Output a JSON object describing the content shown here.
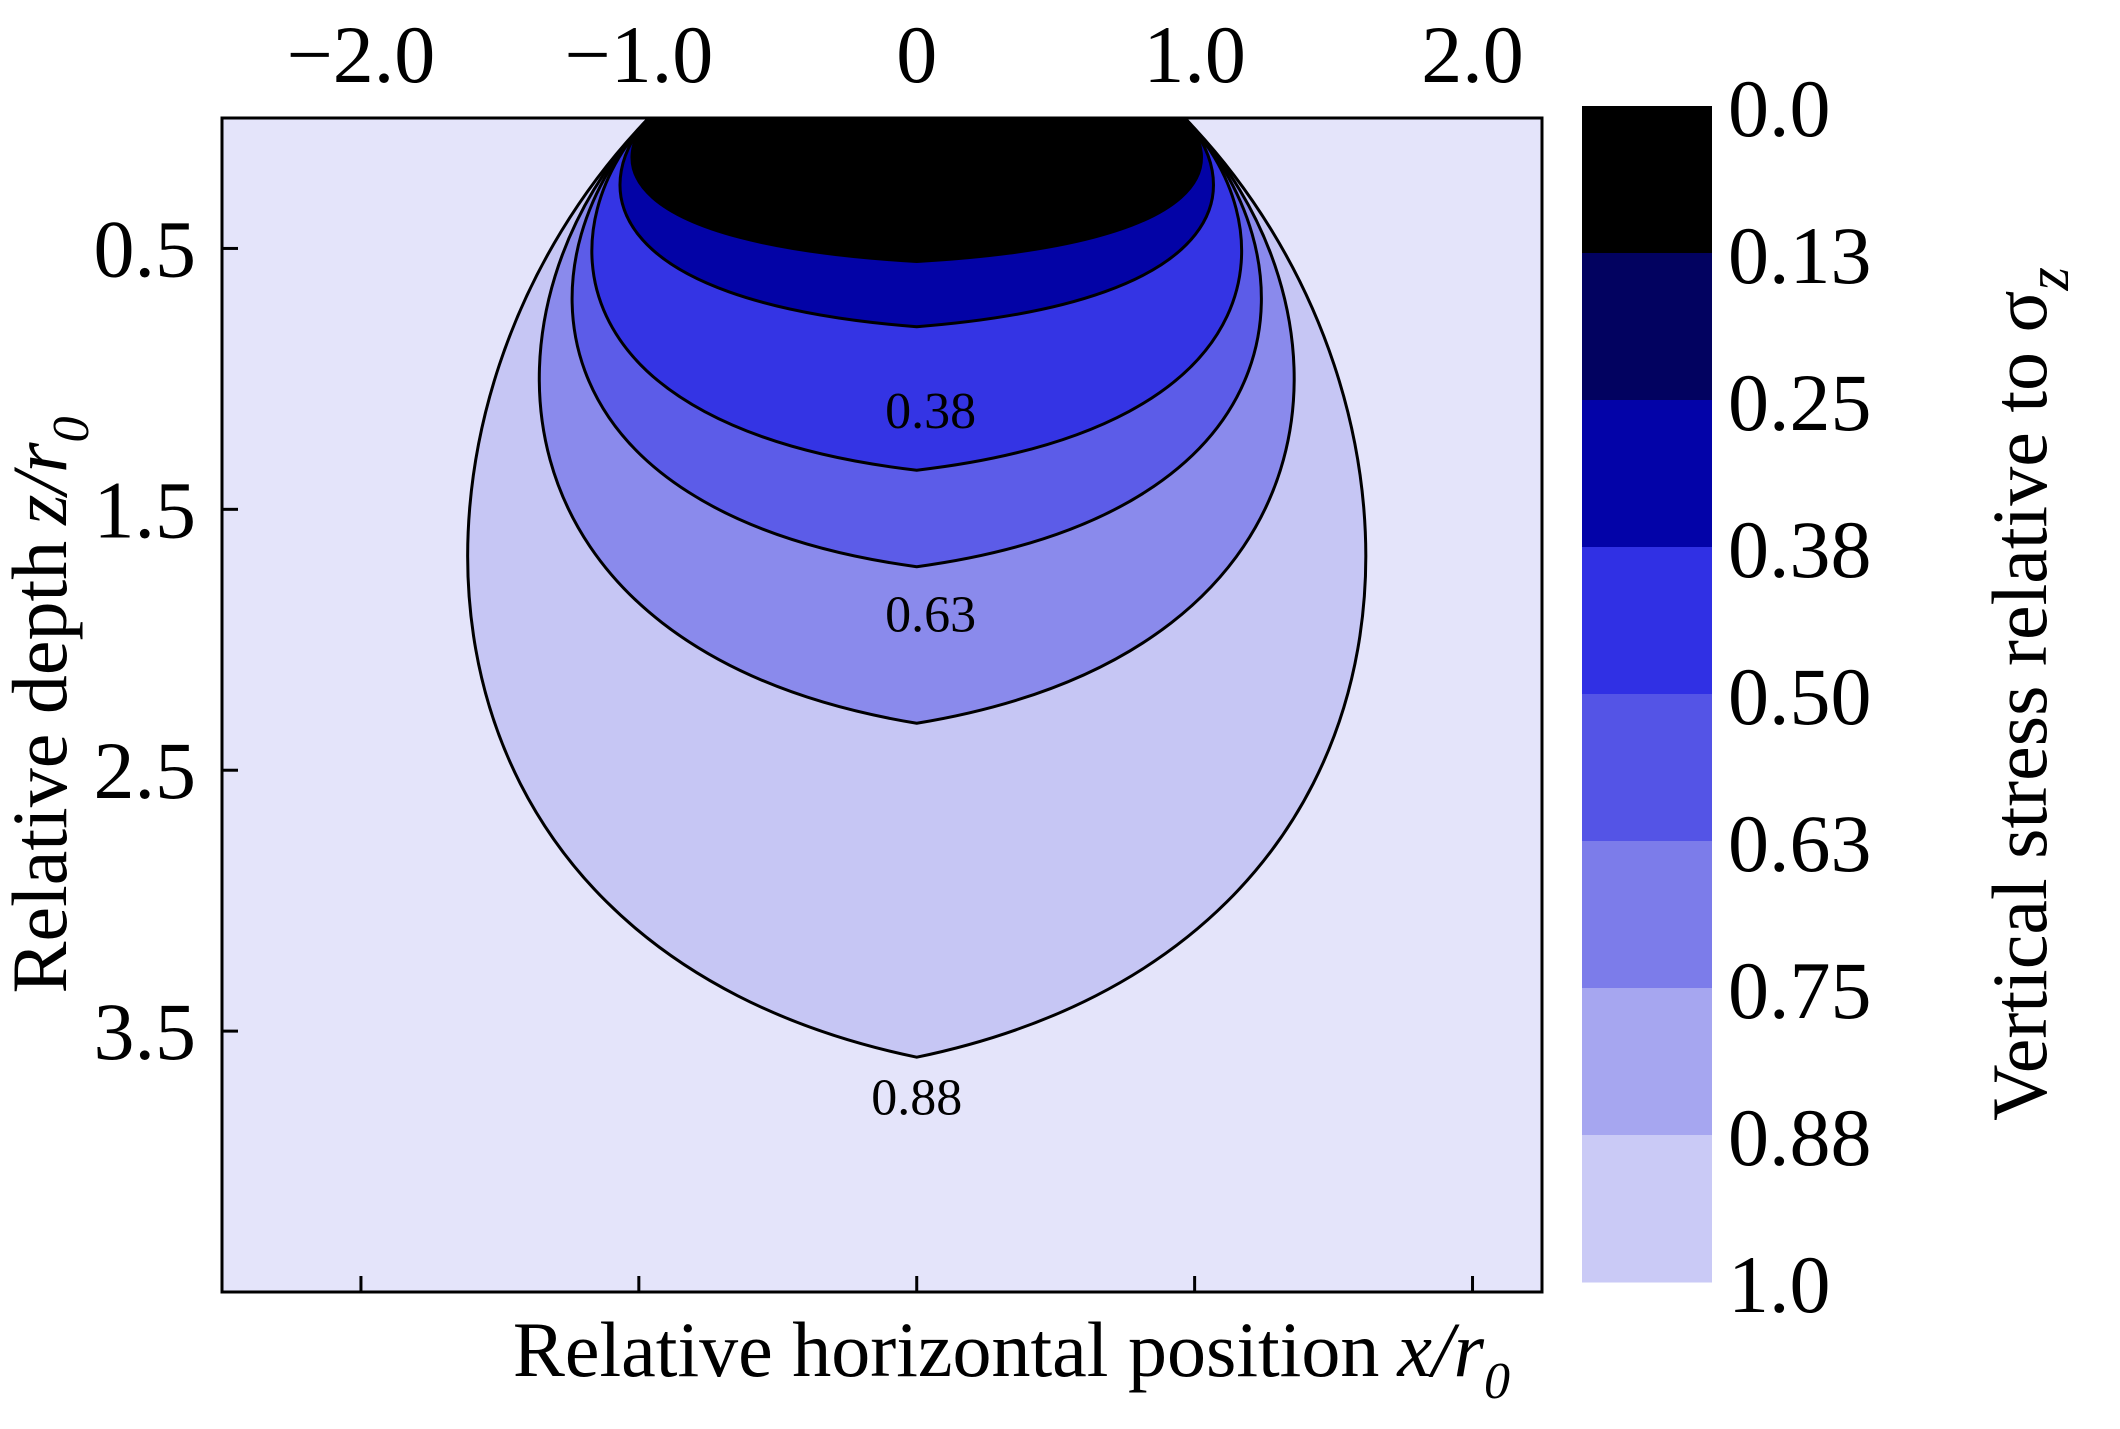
{
  "chart_data": {
    "type": "contour",
    "xlabel": "Relative horizontal position",
    "xlabel_var": "x/r",
    "xlabel_sub": "0",
    "ylabel": "Relative depth",
    "ylabel_var": "z/r",
    "ylabel_sub": "0",
    "colorbar_label": "Vertical stress relative to σ",
    "colorbar_label_sub": "z",
    "x_ticks": [
      {
        "value": -2.0,
        "label": "−2.0"
      },
      {
        "value": -1.0,
        "label": "−1.0"
      },
      {
        "value": 0,
        "label": "0"
      },
      {
        "value": 1.0,
        "label": "1.0"
      },
      {
        "value": 2.0,
        "label": "2.0"
      }
    ],
    "y_ticks": [
      {
        "value": 0.5,
        "label": "0.5"
      },
      {
        "value": 1.5,
        "label": "1.5"
      },
      {
        "value": 2.5,
        "label": "2.5"
      },
      {
        "value": 3.5,
        "label": "3.5"
      }
    ],
    "xlim": [
      -2.5,
      2.25
    ],
    "ylim": [
      0,
      4.5
    ],
    "x_tick_position": "top",
    "y_axis_inverted": true,
    "levels": [
      0.0,
      0.13,
      0.25,
      0.38,
      0.5,
      0.63,
      0.75,
      0.88,
      1.0
    ],
    "level_labels": [
      "0.0",
      "0.13",
      "0.25",
      "0.38",
      "0.50",
      "0.63",
      "0.75",
      "0.88",
      "1.0"
    ],
    "band_colors": [
      "#000000",
      "#02025e",
      "#0202aa",
      "#2a2ae6",
      "#4848e6",
      "#7474e8",
      "#a4a4ee",
      "#cacaf6",
      "#e4e4fa"
    ],
    "contours": [
      {
        "level": 0.13,
        "max_depth": 0.55
      },
      {
        "level": 0.25,
        "max_depth": 0.8
      },
      {
        "level": 0.38,
        "max_depth": 1.35
      },
      {
        "level": 0.5,
        "max_depth": 1.72
      },
      {
        "level": 0.63,
        "max_depth": 2.32
      },
      {
        "level": 0.88,
        "max_depth": 3.6
      }
    ],
    "contour_labels": [
      {
        "text": "0.38",
        "x": 0.05,
        "z": 1.12
      },
      {
        "text": "0.63",
        "x": 0.05,
        "z": 1.9
      },
      {
        "text": "0.88",
        "x": 0.0,
        "z": 3.75
      }
    ],
    "load_edges": [
      -0.95,
      0.95
    ],
    "grid": false
  }
}
